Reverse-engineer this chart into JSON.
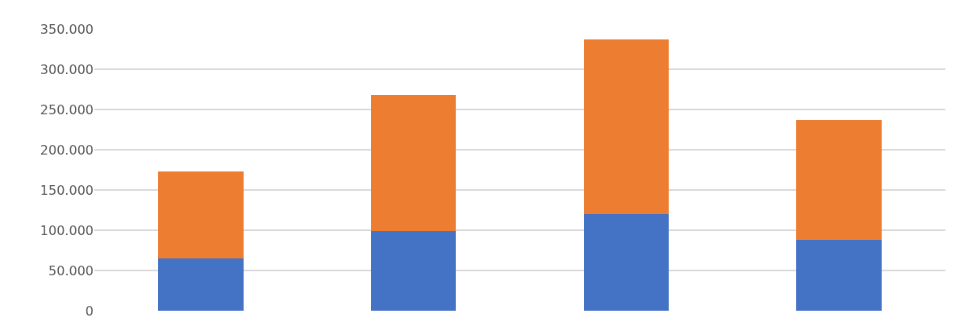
{
  "chart_data": {
    "type": "bar",
    "stacked": true,
    "categories": [
      null,
      null,
      null,
      null
    ],
    "series": [
      {
        "color": "#4472c4",
        "values": [
          65000,
          99000,
          120000,
          88000
        ]
      },
      {
        "color": "#ed7d31",
        "values": [
          108000,
          169000,
          217000,
          149000
        ]
      }
    ],
    "ylim": [
      0,
      350000
    ],
    "yticks": [
      {
        "value": 0,
        "label": "0"
      },
      {
        "value": 50000,
        "label": "50.000"
      },
      {
        "value": 100000,
        "label": "100.000"
      },
      {
        "value": 150000,
        "label": "150.000"
      },
      {
        "value": 200000,
        "label": "200.000"
      },
      {
        "value": 250000,
        "label": "250.000"
      },
      {
        "value": 300000,
        "label": "300.000"
      },
      {
        "value": 350000,
        "label": "350.000"
      }
    ],
    "grid": "y"
  }
}
